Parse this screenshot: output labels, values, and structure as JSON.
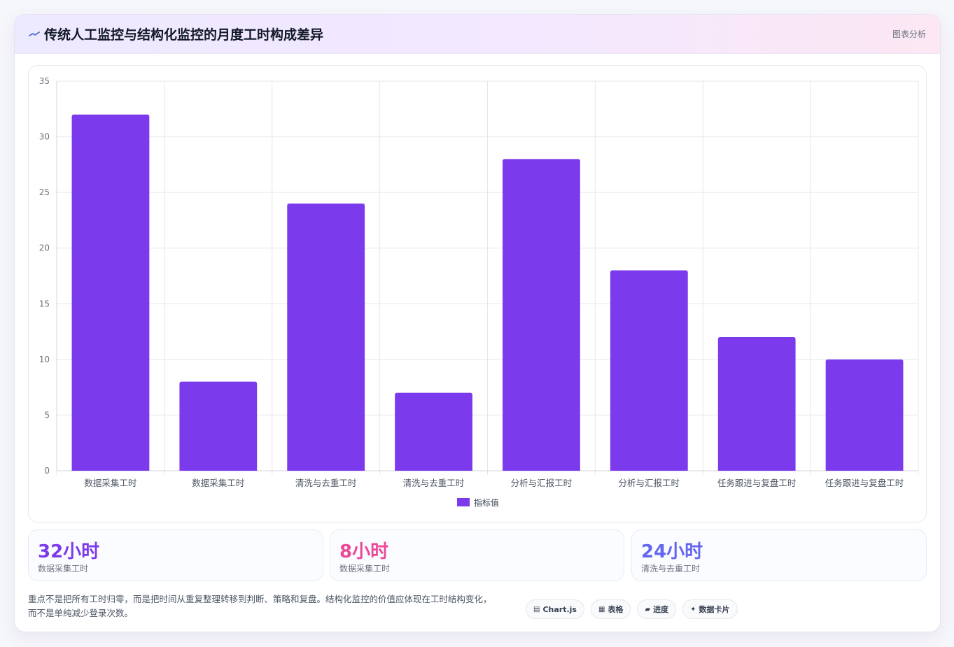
{
  "header": {
    "title": "传统人工监控与结构化监控的月度工时构成差异",
    "tag": "图表分析"
  },
  "colors": {
    "bar": "#7c3aed",
    "stat_purple": "#7c3aed",
    "stat_pink": "#ec4899",
    "stat_indigo": "#6366f1"
  },
  "chart_data": {
    "type": "bar",
    "categories": [
      "数据采集工时",
      "数据采集工时",
      "清洗与去重工时",
      "清洗与去重工时",
      "分析与汇报工时",
      "分析与汇报工时",
      "任务跟进与复盘工时",
      "任务跟进与复盘工时"
    ],
    "series": [
      {
        "name": "指标值",
        "values": [
          32,
          8,
          24,
          7,
          28,
          18,
          12,
          10
        ]
      }
    ],
    "ylim": [
      0,
      35
    ],
    "yticks": [
      0,
      5,
      10,
      15,
      20,
      25,
      30,
      35
    ],
    "grid": true,
    "legend": "bottom-center"
  },
  "stats": [
    {
      "value": "32小时",
      "label": "数据采集工时"
    },
    {
      "value": "8小时",
      "label": "数据采集工时"
    },
    {
      "value": "24小时",
      "label": "清洗与去重工时"
    }
  ],
  "footnote": {
    "line1": "重点不是把所有工时归零，而是把时间从重复整理转移到判断、策略和复盘。结构化监控的价值应体现在工时结构变化，",
    "line2": "而不是单纯减少登录次数。"
  },
  "pills": [
    {
      "icon": "chart-icon",
      "glyph": "▤",
      "label": "Chart.js"
    },
    {
      "icon": "table-icon",
      "glyph": "▦",
      "label": "表格"
    },
    {
      "icon": "progress-icon",
      "glyph": "▰",
      "label": "进度"
    },
    {
      "icon": "sparkle-icon",
      "glyph": "✦",
      "label": "数据卡片"
    }
  ]
}
